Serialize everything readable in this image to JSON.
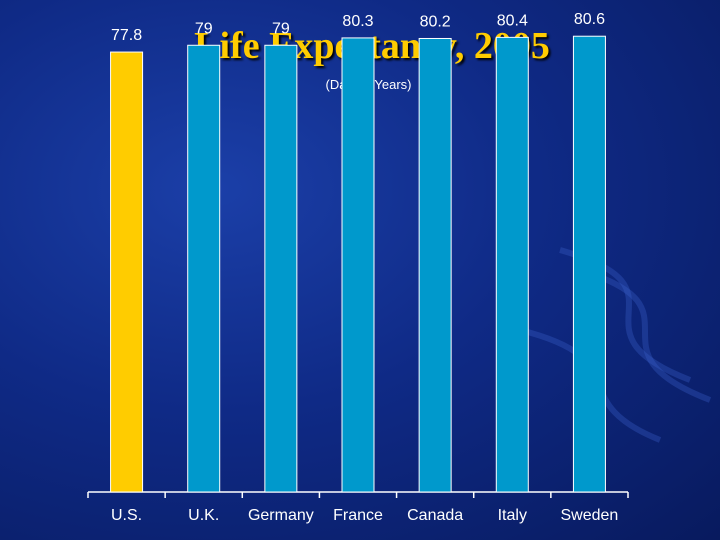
{
  "title": "Life Expectancy, 2005",
  "subtitle": "(Data in Years)",
  "chart_data": {
    "type": "bar",
    "title": "Life Expectancy, 2005",
    "subtitle": "(Data in Years)",
    "categories": [
      "U.S.",
      "U.K.",
      "Germany",
      "France",
      "Canada",
      "Italy",
      "Sweden"
    ],
    "values": [
      77.8,
      79,
      79,
      80.3,
      80.2,
      80.4,
      80.6
    ],
    "value_labels": [
      "77.8",
      "79",
      "79",
      "80.3",
      "80.2",
      "80.4",
      "80.6"
    ],
    "xlabel": "",
    "ylabel": "",
    "ylim": [
      0,
      81.7
    ],
    "grid": false,
    "legend": "none",
    "colors": {
      "highlight": "#ffcc00",
      "bar": "#0099cc",
      "axis": "#ffffff",
      "title": "#ffcc00"
    },
    "highlight_index": 0
  }
}
